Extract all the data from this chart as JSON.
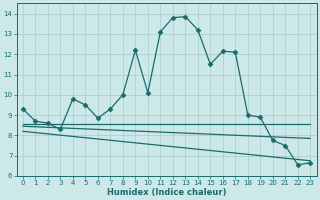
{
  "xlabel": "Humidex (Indice chaleur)",
  "xlim": [
    -0.5,
    23.5
  ],
  "ylim": [
    6,
    14.5
  ],
  "yticks": [
    6,
    7,
    8,
    9,
    10,
    11,
    12,
    13,
    14
  ],
  "xticks": [
    0,
    1,
    2,
    3,
    4,
    5,
    6,
    7,
    8,
    9,
    10,
    11,
    12,
    13,
    14,
    15,
    16,
    17,
    18,
    19,
    20,
    21,
    22,
    23
  ],
  "bg_color": "#cce8e8",
  "grid_color": "#aacccc",
  "line_color": "#1a6b6b",
  "main_x": [
    0,
    1,
    2,
    3,
    4,
    5,
    6,
    7,
    8,
    9,
    10,
    11,
    12,
    13,
    14,
    15,
    16,
    17,
    18,
    19,
    20,
    21,
    22,
    23
  ],
  "main_y": [
    9.3,
    8.7,
    8.6,
    8.3,
    9.8,
    9.5,
    8.85,
    9.3,
    10.0,
    12.2,
    10.1,
    13.1,
    13.8,
    13.85,
    13.2,
    11.5,
    12.15,
    12.1,
    9.0,
    8.9,
    7.75,
    7.5,
    6.55,
    6.65
  ],
  "trend1_x": [
    0,
    23
  ],
  "trend1_y": [
    8.55,
    8.55
  ],
  "trend2_x": [
    0,
    23
  ],
  "trend2_y": [
    8.45,
    7.85
  ],
  "trend3_x": [
    0,
    23
  ],
  "trend3_y": [
    8.2,
    6.75
  ]
}
